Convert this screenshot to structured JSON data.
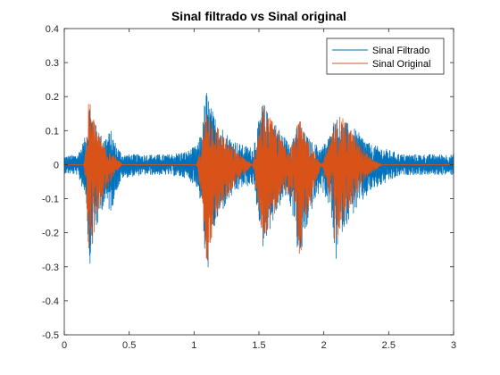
{
  "chart_data": {
    "type": "line",
    "title": "Sinal filtrado vs Sinal original",
    "xlabel": "",
    "ylabel": "",
    "xlim": [
      0,
      3
    ],
    "ylim": [
      -0.5,
      0.4
    ],
    "x_ticks": [
      0,
      0.5,
      1,
      1.5,
      2,
      2.5,
      3
    ],
    "x_tick_labels": [
      "0",
      "0.5",
      "1",
      "1.5",
      "2",
      "2.5",
      "3"
    ],
    "y_ticks": [
      -0.5,
      -0.4,
      -0.3,
      -0.2,
      -0.1,
      0,
      0.1,
      0.2,
      0.3,
      0.4
    ],
    "y_tick_labels": [
      "-0.5",
      "-0.4",
      "-0.3",
      "-0.2",
      "-0.1",
      "0",
      "0.1",
      "0.2",
      "0.3",
      "0.4"
    ],
    "grid": false,
    "legend": "top-right",
    "series": [
      {
        "name": "Sinal Filtrado",
        "color": "#0072BD",
        "envelope": {
          "x": [
            0.0,
            0.1,
            0.17,
            0.19,
            0.22,
            0.26,
            0.3,
            0.36,
            0.4,
            0.45,
            0.6,
            0.8,
            0.95,
            1.03,
            1.07,
            1.09,
            1.11,
            1.15,
            1.2,
            1.28,
            1.36,
            1.45,
            1.5,
            1.53,
            1.56,
            1.6,
            1.65,
            1.72,
            1.78,
            1.81,
            1.84,
            1.9,
            1.98,
            2.05,
            2.09,
            2.11,
            2.14,
            2.2,
            2.28,
            2.36,
            2.45,
            2.6,
            2.8,
            3.0
          ],
          "upper": [
            0.025,
            0.03,
            0.09,
            0.2,
            0.14,
            0.1,
            0.08,
            0.1,
            0.06,
            0.03,
            0.03,
            0.03,
            0.04,
            0.06,
            0.13,
            0.23,
            0.2,
            0.15,
            0.12,
            0.08,
            0.06,
            0.05,
            0.13,
            0.19,
            0.16,
            0.14,
            0.11,
            0.07,
            0.1,
            0.13,
            0.1,
            0.07,
            0.05,
            0.09,
            0.15,
            0.13,
            0.13,
            0.12,
            0.09,
            0.06,
            0.05,
            0.03,
            0.03,
            0.03
          ],
          "lower": [
            -0.025,
            -0.03,
            -0.1,
            -0.31,
            -0.24,
            -0.18,
            -0.12,
            -0.14,
            -0.08,
            -0.04,
            -0.03,
            -0.03,
            -0.04,
            -0.07,
            -0.16,
            -0.38,
            -0.3,
            -0.2,
            -0.15,
            -0.1,
            -0.07,
            -0.06,
            -0.16,
            -0.25,
            -0.21,
            -0.18,
            -0.13,
            -0.09,
            -0.18,
            -0.32,
            -0.24,
            -0.14,
            -0.07,
            -0.13,
            -0.3,
            -0.24,
            -0.2,
            -0.16,
            -0.12,
            -0.08,
            -0.06,
            -0.03,
            -0.03,
            -0.03
          ]
        }
      },
      {
        "name": "Sinal Original",
        "color": "#D95319",
        "envelope": {
          "x": [
            0.0,
            0.15,
            0.17,
            0.19,
            0.22,
            0.26,
            0.3,
            0.36,
            0.4,
            0.45,
            1.02,
            1.07,
            1.09,
            1.11,
            1.15,
            1.2,
            1.28,
            1.36,
            1.45,
            1.5,
            1.53,
            1.56,
            1.6,
            1.65,
            1.72,
            1.78,
            1.81,
            1.84,
            1.9,
            1.98,
            2.05,
            2.09,
            2.11,
            2.14,
            2.2,
            2.28,
            2.36,
            2.45,
            3.0
          ],
          "upper": [
            0.0,
            0.0,
            0.07,
            0.2,
            0.15,
            0.1,
            0.07,
            0.04,
            0.02,
            0.0,
            0.0,
            0.09,
            0.16,
            0.17,
            0.14,
            0.1,
            0.06,
            0.03,
            0.0,
            0.09,
            0.18,
            0.15,
            0.13,
            0.1,
            0.05,
            0.09,
            0.14,
            0.1,
            0.06,
            0.0,
            0.07,
            0.13,
            0.14,
            0.14,
            0.11,
            0.06,
            0.02,
            0.0,
            0.0
          ],
          "lower": [
            0.0,
            0.0,
            -0.08,
            -0.28,
            -0.22,
            -0.15,
            -0.1,
            -0.05,
            -0.02,
            0.0,
            0.0,
            -0.12,
            -0.3,
            -0.28,
            -0.18,
            -0.13,
            -0.08,
            -0.04,
            0.0,
            -0.13,
            -0.23,
            -0.2,
            -0.16,
            -0.12,
            -0.07,
            -0.16,
            -0.3,
            -0.22,
            -0.12,
            0.0,
            -0.1,
            -0.27,
            -0.22,
            -0.18,
            -0.13,
            -0.08,
            -0.03,
            0.0,
            0.0
          ]
        }
      }
    ]
  }
}
